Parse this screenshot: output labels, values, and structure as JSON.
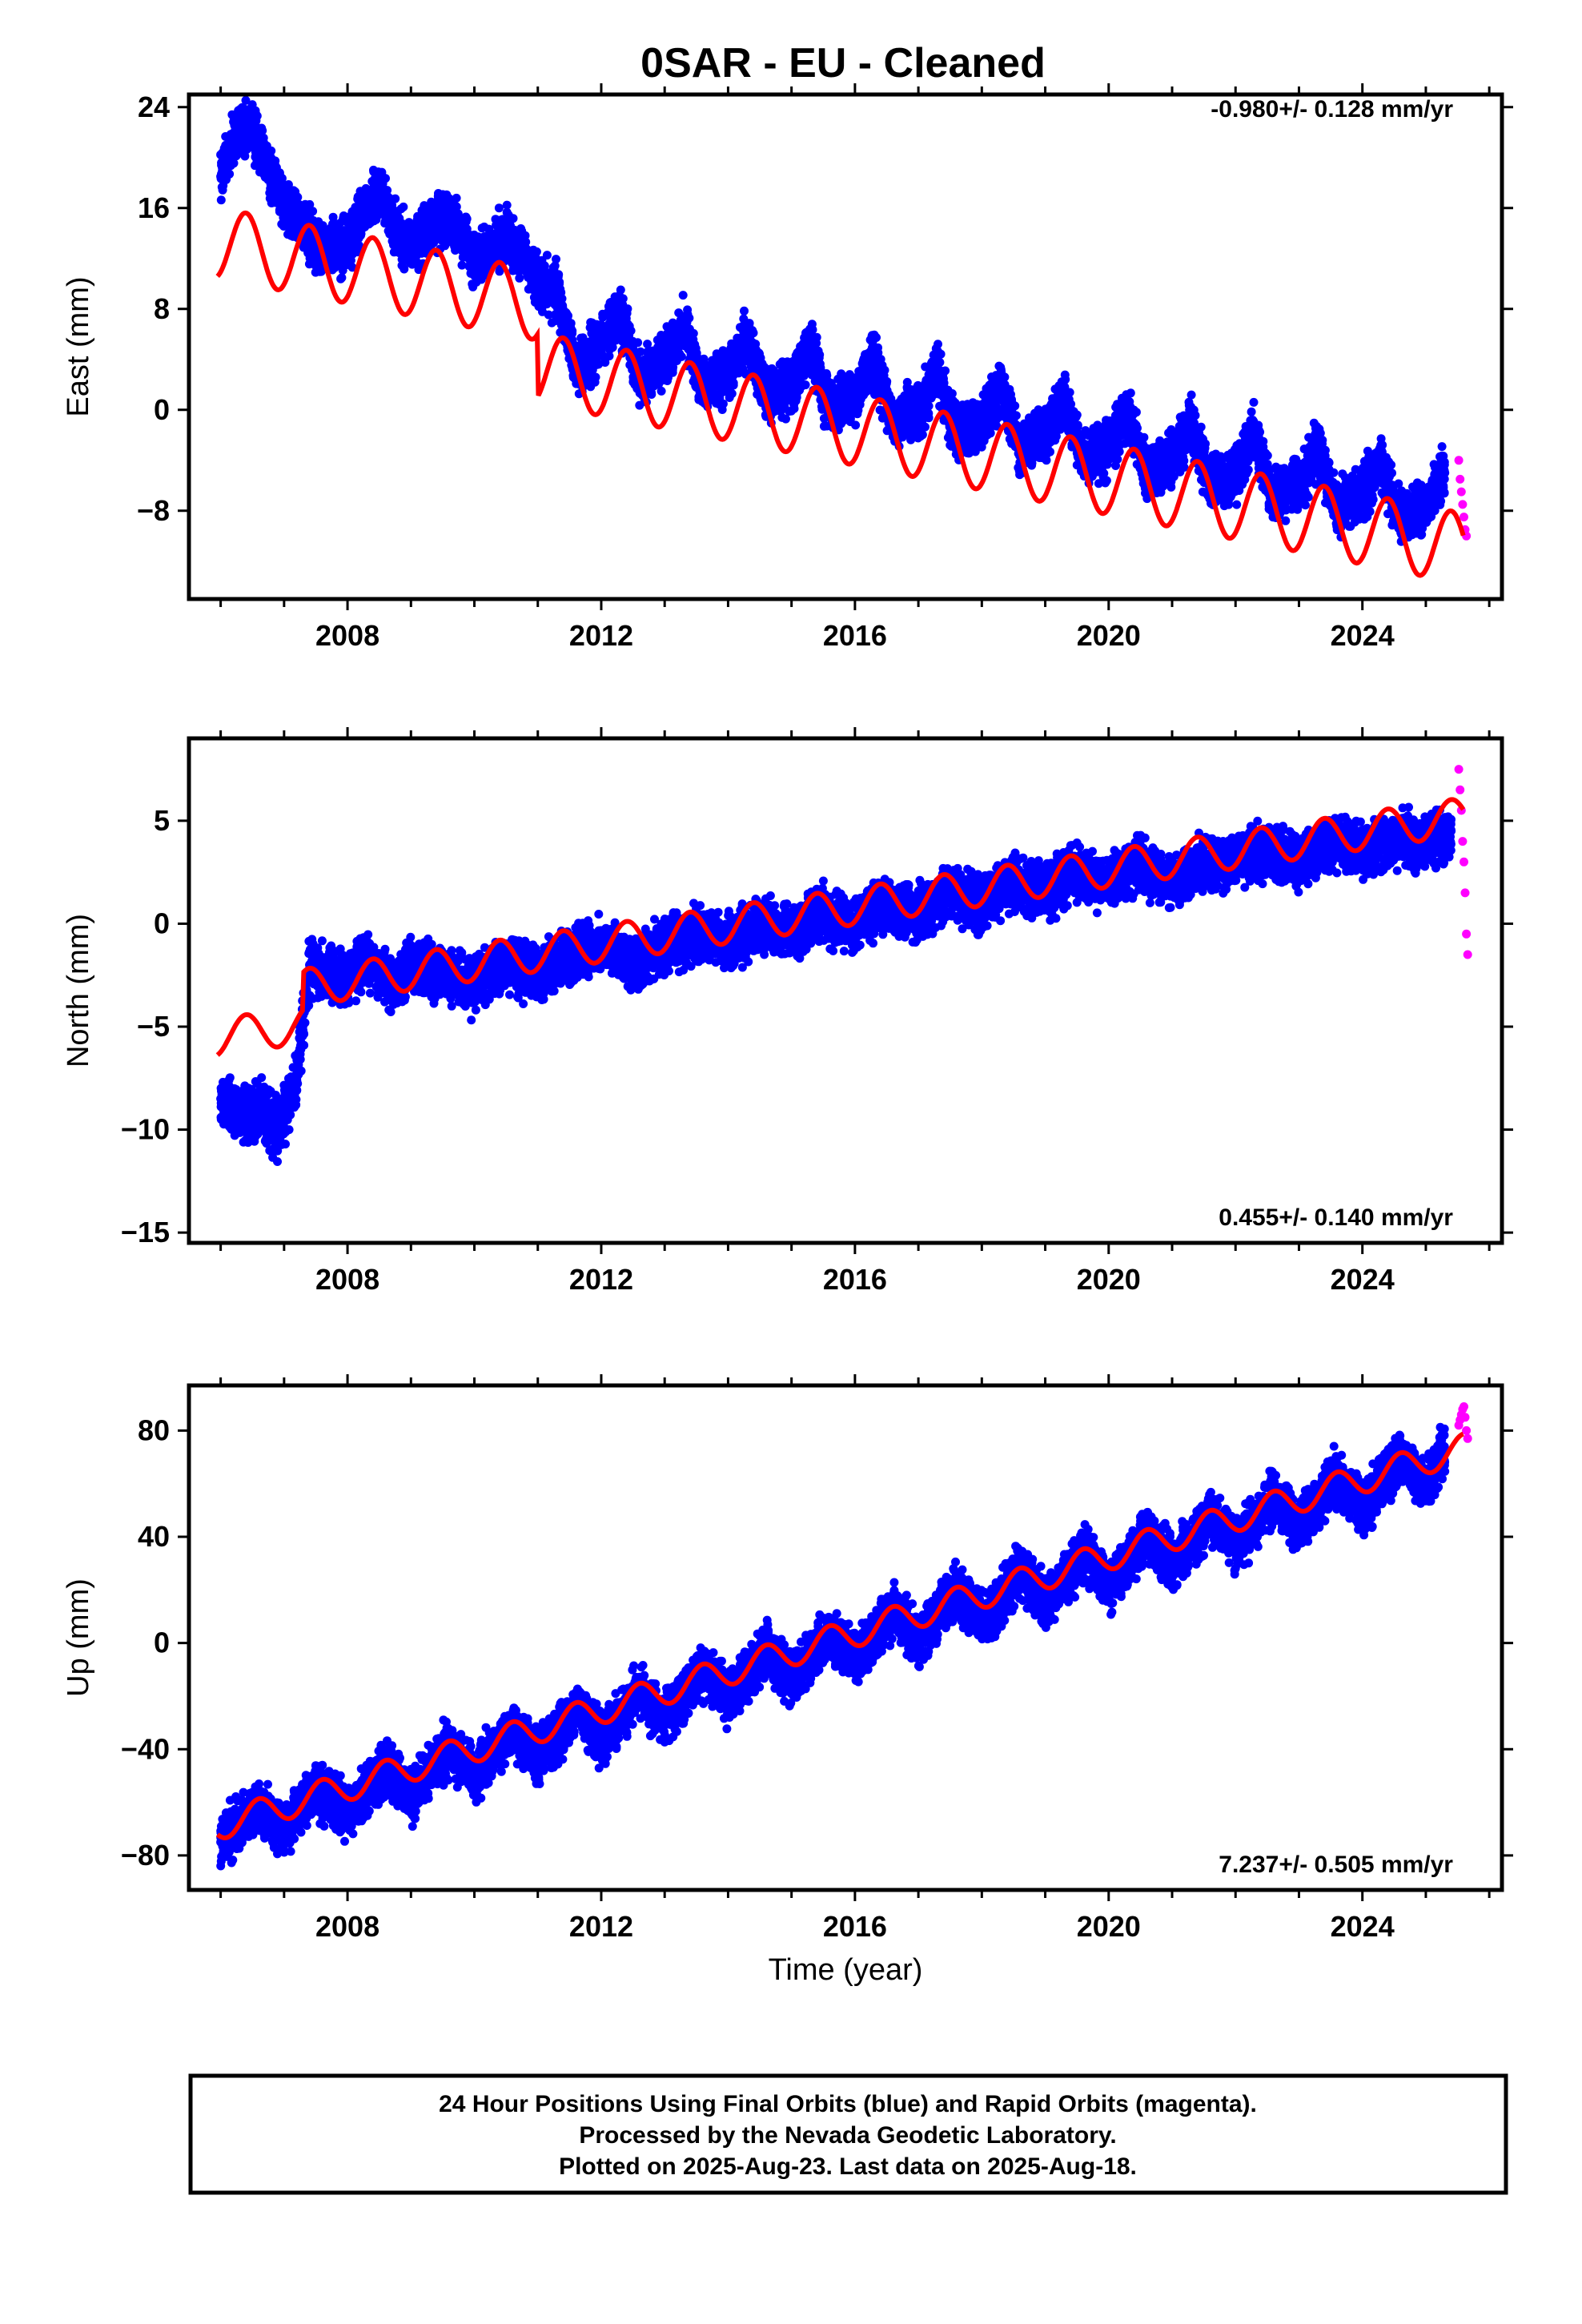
{
  "title": "0SAR  - EU - Cleaned",
  "footer": {
    "line1": "24 Hour Positions Using Final Orbits (blue) and Rapid Orbits (magenta).",
    "line2": "Processed by the Nevada Geodetic Laboratory.",
    "line3": "Plotted on 2025-Aug-23. Last data on 2025-Aug-18."
  },
  "colors": {
    "final": "#0000ff",
    "rapid": "#ff00ff",
    "model": "#ff0000",
    "frame": "#000000"
  },
  "chart_data": [
    {
      "type": "scatter",
      "ylabel": "East (mm)",
      "xlabel": "",
      "rate_text": "-0.980+/- 0.128 mm/yr",
      "xlim": [
        2005.5,
        2026.2
      ],
      "ylim": [
        -15,
        25
      ],
      "x_ticks": [
        2008,
        2012,
        2016,
        2020,
        2024
      ],
      "y_ticks": [
        24,
        16,
        8,
        0,
        -8
      ],
      "grid": false,
      "series": [
        {
          "kind": "final",
          "points": [
            [
              2006.0,
              18.5
            ],
            [
              2006.2,
              21.5
            ],
            [
              2006.5,
              22.5
            ],
            [
              2006.7,
              20.0
            ],
            [
              2007.0,
              16.5
            ],
            [
              2007.3,
              14.5
            ],
            [
              2007.6,
              12.5
            ],
            [
              2008.0,
              13.0
            ],
            [
              2008.3,
              16.0
            ],
            [
              2008.5,
              17.5
            ],
            [
              2008.8,
              14.0
            ],
            [
              2009.0,
              13.0
            ],
            [
              2009.5,
              15.5
            ],
            [
              2009.8,
              14.0
            ],
            [
              2010.0,
              11.5
            ],
            [
              2010.5,
              14.0
            ],
            [
              2010.8,
              12.0
            ],
            [
              2011.0,
              10.0
            ],
            [
              2011.3,
              9.5
            ],
            [
              2011.6,
              3.0
            ],
            [
              2012.0,
              5.5
            ],
            [
              2012.3,
              7.5
            ],
            [
              2012.6,
              2.5
            ],
            [
              2013.0,
              4.0
            ],
            [
              2013.3,
              6.5
            ],
            [
              2013.6,
              2.0
            ],
            [
              2014.0,
              3.0
            ],
            [
              2014.3,
              5.5
            ],
            [
              2014.6,
              1.0
            ],
            [
              2015.0,
              2.0
            ],
            [
              2015.3,
              5.0
            ],
            [
              2015.6,
              0.0
            ],
            [
              2016.0,
              1.0
            ],
            [
              2016.3,
              4.0
            ],
            [
              2016.6,
              -1.0
            ],
            [
              2017.0,
              0.0
            ],
            [
              2017.3,
              3.0
            ],
            [
              2017.6,
              -2.0
            ],
            [
              2018.0,
              -1.0
            ],
            [
              2018.3,
              2.0
            ],
            [
              2018.6,
              -3.0
            ],
            [
              2019.0,
              -2.0
            ],
            [
              2019.3,
              1.0
            ],
            [
              2019.6,
              -4.0
            ],
            [
              2020.0,
              -3.0
            ],
            [
              2020.3,
              0.0
            ],
            [
              2020.6,
              -5.0
            ],
            [
              2021.0,
              -4.0
            ],
            [
              2021.3,
              -1.0
            ],
            [
              2021.6,
              -6.0
            ],
            [
              2022.0,
              -5.0
            ],
            [
              2022.3,
              -2.0
            ],
            [
              2022.6,
              -7.0
            ],
            [
              2023.0,
              -6.0
            ],
            [
              2023.3,
              -3.0
            ],
            [
              2023.6,
              -8.0
            ],
            [
              2024.0,
              -6.5
            ],
            [
              2024.3,
              -4.0
            ],
            [
              2024.6,
              -9.0
            ],
            [
              2025.0,
              -7.5
            ],
            [
              2025.3,
              -5.0
            ]
          ]
        },
        {
          "kind": "rapid",
          "points": [
            [
              2025.52,
              -4.0
            ],
            [
              2025.54,
              -5.5
            ],
            [
              2025.56,
              -6.5
            ],
            [
              2025.58,
              -7.5
            ],
            [
              2025.6,
              -8.5
            ],
            [
              2025.62,
              -9.5
            ],
            [
              2025.64,
              -10.0
            ]
          ]
        }
      ],
      "model": {
        "intercept_year": 2006.0,
        "intercept": 13.2,
        "slope": -0.98,
        "amplitude": 2.8,
        "phase_peak_fraction": 0.4,
        "offsets": [
          {
            "year": 2011.0,
            "step": -5.0
          }
        ]
      }
    },
    {
      "type": "scatter",
      "ylabel": "North (mm)",
      "xlabel": "",
      "rate_text": "0.455+/- 0.140 mm/yr",
      "xlim": [
        2005.5,
        2026.2
      ],
      "ylim": [
        -15.5,
        9
      ],
      "x_ticks": [
        2008,
        2012,
        2016,
        2020,
        2024
      ],
      "y_ticks": [
        5,
        0,
        -5,
        -10,
        -15
      ],
      "grid": false,
      "series": [
        {
          "kind": "final",
          "points": [
            [
              2006.0,
              -8.5
            ],
            [
              2006.3,
              -9.5
            ],
            [
              2006.6,
              -9.0
            ],
            [
              2006.9,
              -10.0
            ],
            [
              2007.2,
              -7.5
            ],
            [
              2007.4,
              -2.0
            ],
            [
              2007.7,
              -2.5
            ],
            [
              2008.0,
              -2.5
            ],
            [
              2008.3,
              -1.5
            ],
            [
              2008.7,
              -3.0
            ],
            [
              2009.0,
              -2.0
            ],
            [
              2009.5,
              -2.5
            ],
            [
              2010.0,
              -3.0
            ],
            [
              2010.5,
              -2.0
            ],
            [
              2011.0,
              -2.5
            ],
            [
              2011.5,
              -1.5
            ],
            [
              2012.0,
              -1.0
            ],
            [
              2012.5,
              -2.0
            ],
            [
              2013.0,
              -1.0
            ],
            [
              2013.5,
              -0.5
            ],
            [
              2014.0,
              -1.0
            ],
            [
              2014.5,
              0.0
            ],
            [
              2015.0,
              -0.5
            ],
            [
              2015.5,
              0.5
            ],
            [
              2016.0,
              0.0
            ],
            [
              2016.5,
              1.0
            ],
            [
              2017.0,
              0.5
            ],
            [
              2017.5,
              1.5
            ],
            [
              2018.0,
              1.0
            ],
            [
              2018.5,
              2.0
            ],
            [
              2019.0,
              1.5
            ],
            [
              2019.5,
              2.5
            ],
            [
              2020.0,
              2.0
            ],
            [
              2020.5,
              3.0
            ],
            [
              2021.0,
              2.0
            ],
            [
              2021.5,
              3.0
            ],
            [
              2022.0,
              3.0
            ],
            [
              2022.5,
              3.5
            ],
            [
              2023.0,
              3.0
            ],
            [
              2023.5,
              4.0
            ],
            [
              2024.0,
              3.5
            ],
            [
              2024.5,
              4.0
            ],
            [
              2025.0,
              4.0
            ],
            [
              2025.4,
              4.5
            ]
          ]
        },
        {
          "kind": "rapid",
          "points": [
            [
              2025.52,
              7.5
            ],
            [
              2025.54,
              6.5
            ],
            [
              2025.56,
              5.5
            ],
            [
              2025.58,
              4.0
            ],
            [
              2025.6,
              3.0
            ],
            [
              2025.62,
              1.5
            ],
            [
              2025.64,
              -0.5
            ],
            [
              2025.66,
              -1.5
            ]
          ]
        }
      ],
      "model": {
        "intercept_year": 2006.0,
        "intercept": -5.5,
        "slope": 0.455,
        "amplitude": 0.9,
        "phase_peak_fraction": 0.4,
        "offsets": [
          {
            "year": 2007.3,
            "step": 1.8
          }
        ]
      }
    },
    {
      "type": "scatter",
      "ylabel": "Up (mm)",
      "xlabel": "Time (year)",
      "rate_text": "7.237+/- 0.505 mm/yr",
      "xlim": [
        2005.5,
        2026.2
      ],
      "ylim": [
        -93,
        97
      ],
      "x_ticks": [
        2008,
        2012,
        2016,
        2020,
        2024
      ],
      "y_ticks": [
        80,
        40,
        0,
        -40,
        -80
      ],
      "grid": false,
      "series": [
        {
          "kind": "final",
          "points": [
            [
              2006.0,
              -75.0
            ],
            [
              2006.3,
              -68.0
            ],
            [
              2006.6,
              -62.0
            ],
            [
              2007.0,
              -70.0
            ],
            [
              2007.3,
              -60.0
            ],
            [
              2007.6,
              -55.0
            ],
            [
              2008.0,
              -65.0
            ],
            [
              2008.3,
              -55.0
            ],
            [
              2008.6,
              -47.0
            ],
            [
              2009.0,
              -58.0
            ],
            [
              2009.3,
              -48.0
            ],
            [
              2009.6,
              -40.0
            ],
            [
              2010.0,
              -50.0
            ],
            [
              2010.3,
              -42.0
            ],
            [
              2010.6,
              -33.0
            ],
            [
              2011.0,
              -43.0
            ],
            [
              2011.3,
              -35.0
            ],
            [
              2011.6,
              -25.0
            ],
            [
              2012.0,
              -36.0
            ],
            [
              2012.3,
              -28.0
            ],
            [
              2012.6,
              -18.0
            ],
            [
              2013.0,
              -28.0
            ],
            [
              2013.3,
              -20.0
            ],
            [
              2013.6,
              -10.0
            ],
            [
              2014.0,
              -20.0
            ],
            [
              2014.3,
              -12.0
            ],
            [
              2014.6,
              -3.0
            ],
            [
              2015.0,
              -13.0
            ],
            [
              2015.3,
              -5.0
            ],
            [
              2015.6,
              5.0
            ],
            [
              2016.0,
              -6.0
            ],
            [
              2016.3,
              2.0
            ],
            [
              2016.6,
              12.0
            ],
            [
              2017.0,
              1.0
            ],
            [
              2017.3,
              9.0
            ],
            [
              2017.6,
              20.0
            ],
            [
              2018.0,
              8.0
            ],
            [
              2018.3,
              16.0
            ],
            [
              2018.6,
              27.0
            ],
            [
              2019.0,
              15.0
            ],
            [
              2019.3,
              23.0
            ],
            [
              2019.6,
              34.0
            ],
            [
              2020.0,
              22.0
            ],
            [
              2020.3,
              30.0
            ],
            [
              2020.6,
              41.0
            ],
            [
              2021.0,
              30.0
            ],
            [
              2021.3,
              38.0
            ],
            [
              2021.6,
              48.0
            ],
            [
              2022.0,
              37.0
            ],
            [
              2022.3,
              45.0
            ],
            [
              2022.6,
              56.0
            ],
            [
              2023.0,
              44.0
            ],
            [
              2023.3,
              52.0
            ],
            [
              2023.6,
              63.0
            ],
            [
              2024.0,
              51.0
            ],
            [
              2024.3,
              59.0
            ],
            [
              2024.6,
              70.0
            ],
            [
              2025.0,
              60.0
            ],
            [
              2025.3,
              72.0
            ]
          ]
        },
        {
          "kind": "rapid",
          "points": [
            [
              2025.52,
              82.0
            ],
            [
              2025.54,
              84.0
            ],
            [
              2025.56,
              86.0
            ],
            [
              2025.58,
              88.0
            ],
            [
              2025.6,
              89.0
            ],
            [
              2025.62,
              85.0
            ],
            [
              2025.64,
              80.0
            ],
            [
              2025.66,
              77.0
            ]
          ]
        }
      ],
      "model": {
        "intercept_year": 2006.0,
        "intercept": -68.5,
        "slope": 7.237,
        "amplitude": 5.5,
        "phase_peak_fraction": 0.6,
        "offsets": []
      }
    }
  ]
}
